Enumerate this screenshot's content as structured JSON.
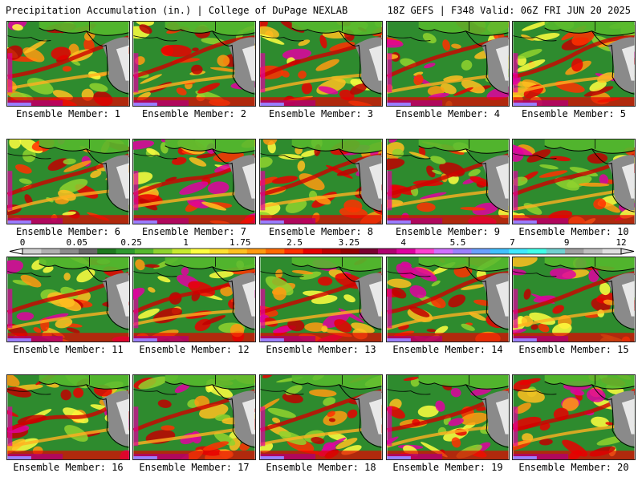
{
  "header": {
    "title": "Precipitation Accumulation (in.) | College of DuPage NEXLAB",
    "valid": "18Z GEFS | F348 Valid: 06Z FRI JUN 20 2025"
  },
  "members": [
    "Ensemble Member: 1",
    "Ensemble Member: 2",
    "Ensemble Member: 3",
    "Ensemble Member: 4",
    "Ensemble Member: 5",
    "Ensemble Member: 6",
    "Ensemble Member: 7",
    "Ensemble Member: 8",
    "Ensemble Member: 9",
    "Ensemble Member: 10",
    "Ensemble Member: 11",
    "Ensemble Member: 12",
    "Ensemble Member: 13",
    "Ensemble Member: 14",
    "Ensemble Member: 15",
    "Ensemble Member: 16",
    "Ensemble Member: 17",
    "Ensemble Member: 18",
    "Ensemble Member: 19",
    "Ensemble Member: 20"
  ],
  "colorbar": {
    "ticks": [
      "0",
      "0.05",
      "0.25",
      "1",
      "1.75",
      "2.5",
      "3.25",
      "4",
      "5.5",
      "7",
      "9",
      "12"
    ],
    "colors": [
      "#d0d0d0",
      "#b0b0b0",
      "#8c8c8c",
      "#686868",
      "#1e7a1e",
      "#2f9a2f",
      "#55b82e",
      "#8fd22e",
      "#c8ea2e",
      "#ffff40",
      "#ffe030",
      "#ffc020",
      "#ff9a10",
      "#ff6a00",
      "#ff3000",
      "#e80000",
      "#c00000",
      "#960000",
      "#7a0030",
      "#b00070",
      "#e000a0",
      "#ff40d0",
      "#d070ff",
      "#9a80ff",
      "#6aa0ff",
      "#40c0ff",
      "#40e8ff",
      "#40ffe8",
      "#70d0d0",
      "#a0a0a0",
      "#c0c0c0",
      "#e0e0e0"
    ]
  },
  "map": {
    "ocean": "#2e8b2e",
    "land": "#8a8a8a",
    "snow": "#e8e8e8",
    "coast": "#000000"
  }
}
